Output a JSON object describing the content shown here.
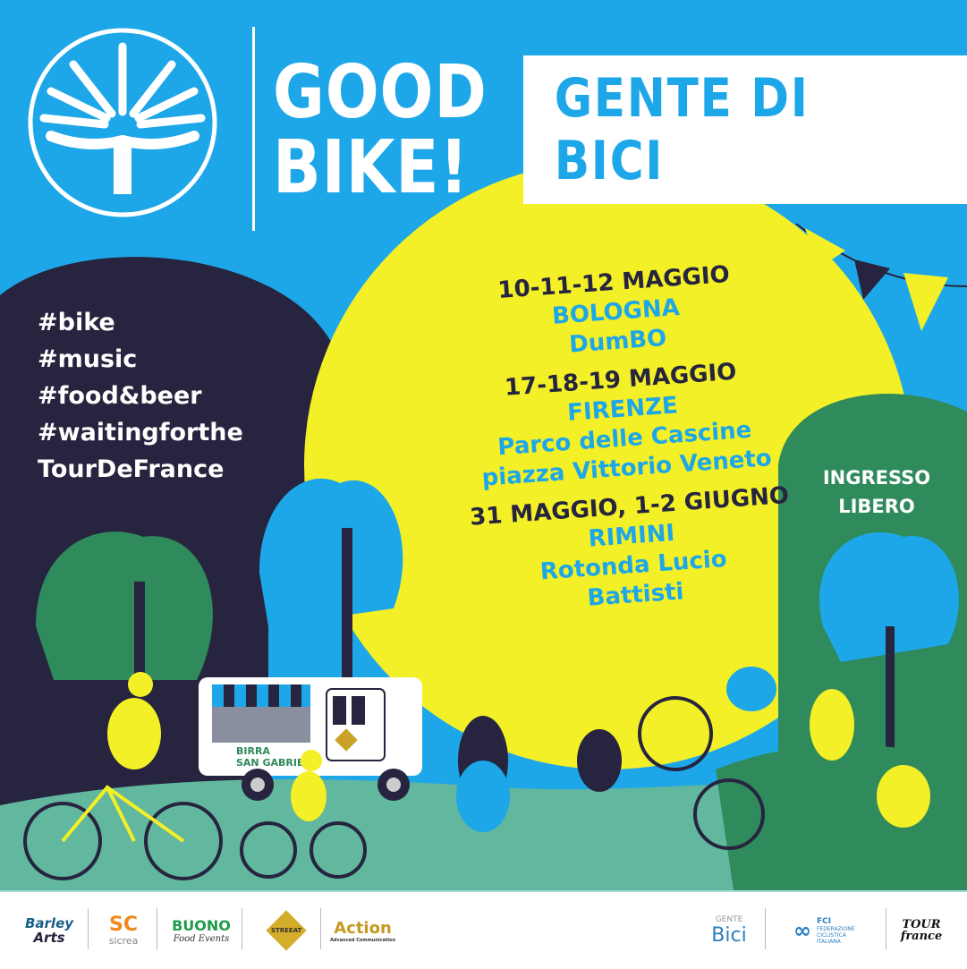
{
  "header": {
    "brand_line1": "GOOD",
    "brand_line2": "BIKE!",
    "title": "GENTE DI BICI"
  },
  "hashtags": [
    "#bike",
    "#music",
    "#food&beer",
    "#waitingforthe",
    "TourDeFrance"
  ],
  "events": [
    {
      "dates": "10-11-12 MAGGIO",
      "city": "BOLOGNA",
      "venue_lines": [
        "DumBO"
      ]
    },
    {
      "dates": "17-18-19 MAGGIO",
      "city": "FIRENZE",
      "venue_lines": [
        "Parco delle Cascine",
        "piazza Vittorio Veneto"
      ]
    },
    {
      "dates": "31 MAGGIO, 1-2 GIUGNO",
      "city": "RIMINI",
      "venue_lines": [
        "Rotonda Lucio",
        "Battisti"
      ]
    }
  ],
  "ingresso": {
    "line1": "INGRESSO",
    "line2": "LIBERO"
  },
  "truck": {
    "brand_small": "BIRRA",
    "brand": "SAN GABRIEL",
    "badge": "STREEAT"
  },
  "sponsors_left": [
    {
      "name": "Barley Arts",
      "line1": "Barley",
      "line2": "Arts"
    },
    {
      "name": "Sicrea",
      "line1": "SC",
      "line2": "sicrea"
    },
    {
      "name": "Buono Food Events",
      "line1": "BUONO",
      "line2": "Food Events"
    },
    {
      "name": "Streeat",
      "line1": "STREEAT"
    },
    {
      "name": "Action",
      "line1": "Action",
      "line2": "Advanced Communication"
    }
  ],
  "sponsors_right": [
    {
      "name": "Gente di Bici",
      "line1": "GENTE",
      "line2": "Bici"
    },
    {
      "name": "FCI",
      "line1": "FCI",
      "line2": "FEDERAZIONE CICLISTICA ITALIANA"
    },
    {
      "name": "Tour de France",
      "line1": "TOUR",
      "line2": "france"
    }
  ],
  "colors": {
    "blue": "#1ea7e8",
    "yellow": "#f3f027",
    "navy": "#26243e",
    "green": "#2f8a5c",
    "teal": "#62b79f"
  }
}
